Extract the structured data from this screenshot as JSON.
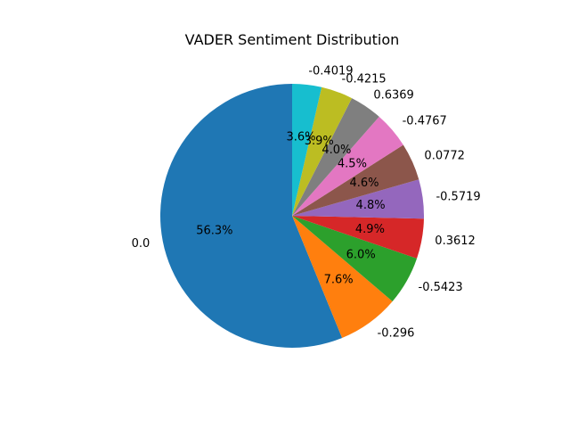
{
  "chart_data": {
    "type": "pie",
    "title": "VADER Sentiment Distribution",
    "start_angle_deg": 90,
    "direction": "counterclockwise",
    "autopct_format": "%1.1f%%",
    "slices": [
      {
        "label": "0.0",
        "value": 56.3,
        "color": "#1f77b4"
      },
      {
        "label": "-0.296",
        "value": 7.6,
        "color": "#ff7f0e"
      },
      {
        "label": "-0.5423",
        "value": 6.0,
        "color": "#2ca02c"
      },
      {
        "label": "0.3612",
        "value": 4.9,
        "color": "#d62728"
      },
      {
        "label": "-0.5719",
        "value": 4.8,
        "color": "#9467bd"
      },
      {
        "label": "0.0772",
        "value": 4.6,
        "color": "#8c564b"
      },
      {
        "label": "-0.4767",
        "value": 4.5,
        "color": "#e377c2"
      },
      {
        "label": "0.6369",
        "value": 4.0,
        "color": "#7f7f7f"
      },
      {
        "label": "-0.4215",
        "value": 3.9,
        "color": "#bcbd22"
      },
      {
        "label": "-0.4019",
        "value": 3.6,
        "color": "#17becf"
      }
    ]
  }
}
